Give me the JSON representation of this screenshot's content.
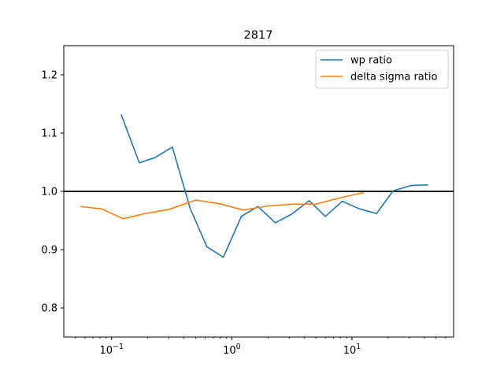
{
  "chart_data": {
    "type": "line",
    "title": "2817",
    "xlabel": "",
    "ylabel": "",
    "xscale": "log",
    "xlim": [
      0.04,
      70
    ],
    "ylim": [
      0.75,
      1.25
    ],
    "legend_position": "upper right",
    "grid": false,
    "x_tick_labels": [
      {
        "value": 0.1,
        "base": "10",
        "exp": "−1"
      },
      {
        "value": 1,
        "base": "10",
        "exp": "0"
      },
      {
        "value": 10,
        "base": "10",
        "exp": "1"
      }
    ],
    "y_ticks": [
      0.8,
      0.9,
      1.0,
      1.1,
      1.2
    ],
    "y_tick_labels": [
      "0.8",
      "0.9",
      "1.0",
      "1.1",
      "1.2"
    ],
    "reference_line": {
      "y": 1.0,
      "color": "#000000"
    },
    "series": [
      {
        "name": "wp ratio",
        "color": "#1f77b4",
        "x": [
          0.12,
          0.17,
          0.23,
          0.32,
          0.45,
          0.62,
          0.85,
          1.2,
          1.65,
          2.3,
          3.15,
          4.4,
          6.0,
          8.3,
          11.5,
          16,
          22,
          31,
          43
        ],
        "y": [
          1.132,
          1.049,
          1.058,
          1.076,
          0.971,
          0.905,
          0.887,
          0.957,
          0.974,
          0.946,
          0.961,
          0.984,
          0.957,
          0.983,
          0.97,
          0.962,
          1.001,
          1.01,
          1.011
        ]
      },
      {
        "name": "delta sigma ratio",
        "color": "#ff7f0e",
        "x": [
          0.055,
          0.082,
          0.125,
          0.19,
          0.3,
          0.5,
          0.78,
          1.25,
          2.0,
          3.2,
          5.0,
          8.0,
          12.5
        ],
        "y": [
          0.974,
          0.97,
          0.953,
          0.962,
          0.969,
          0.985,
          0.979,
          0.968,
          0.975,
          0.978,
          0.978,
          0.989,
          0.998
        ]
      }
    ]
  }
}
